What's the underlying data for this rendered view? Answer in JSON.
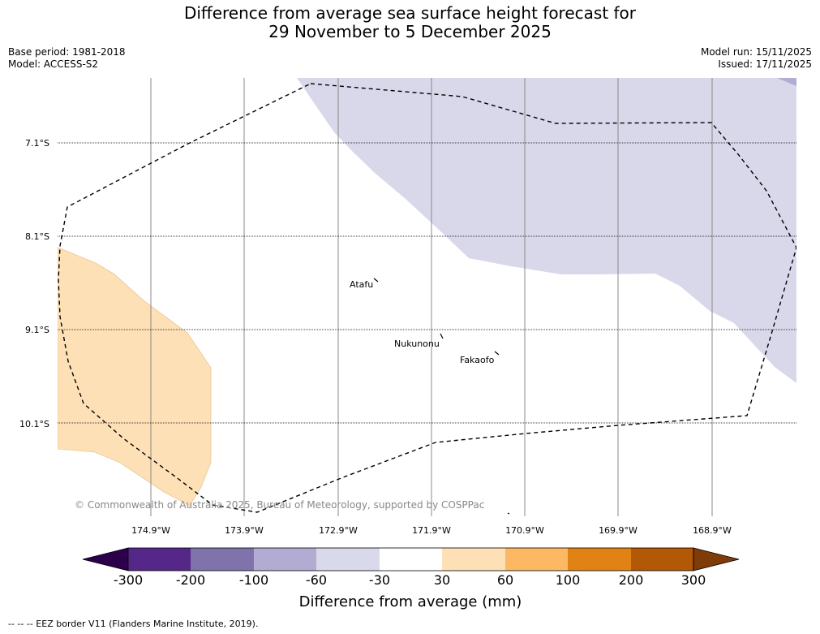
{
  "title": {
    "line1": "Difference from average sea surface height forecast for",
    "line2": "29 November to 5 December 2025"
  },
  "meta_left": {
    "base_period": "Base period: 1981-2018",
    "model": "Model: ACCESS-S2"
  },
  "meta_right": {
    "model_run": "Model run: 15/11/2025",
    "issued": "Issued: 17/11/2025"
  },
  "map": {
    "lat_labels": [
      "7.1°S",
      "8.1°S",
      "9.1°S",
      "10.1°S"
    ],
    "lon_labels": [
      "174.9°W",
      "173.9°W",
      "172.9°W",
      "171.9°W",
      "170.9°W",
      "169.9°W",
      "168.9°W"
    ],
    "places": [
      "Atafu",
      "Nukunonu",
      "Fakaofo"
    ],
    "copyright": "© Commonwealth of Australia 2025, Bureau of Meteorology, supported by COSPPac",
    "colors": {
      "negative_light": "#d8d8ea",
      "positive_light": "#fde0b6"
    }
  },
  "legend": {
    "tick_labels": [
      "-300",
      "-200",
      "-100",
      "-60",
      "-30",
      "30",
      "60",
      "100",
      "200",
      "300"
    ],
    "colors": [
      "#2d004b",
      "#542788",
      "#8073ac",
      "#b2abd2",
      "#d8daeb",
      "#ffffff",
      "#fee0b6",
      "#fdb863",
      "#e08214",
      "#b35806",
      "#7f3b08"
    ],
    "label": "Difference from average (mm)"
  },
  "footer": {
    "eez_note": "--  --  -- EEZ border V11 (Flanders Marine Institute, 2019)."
  }
}
